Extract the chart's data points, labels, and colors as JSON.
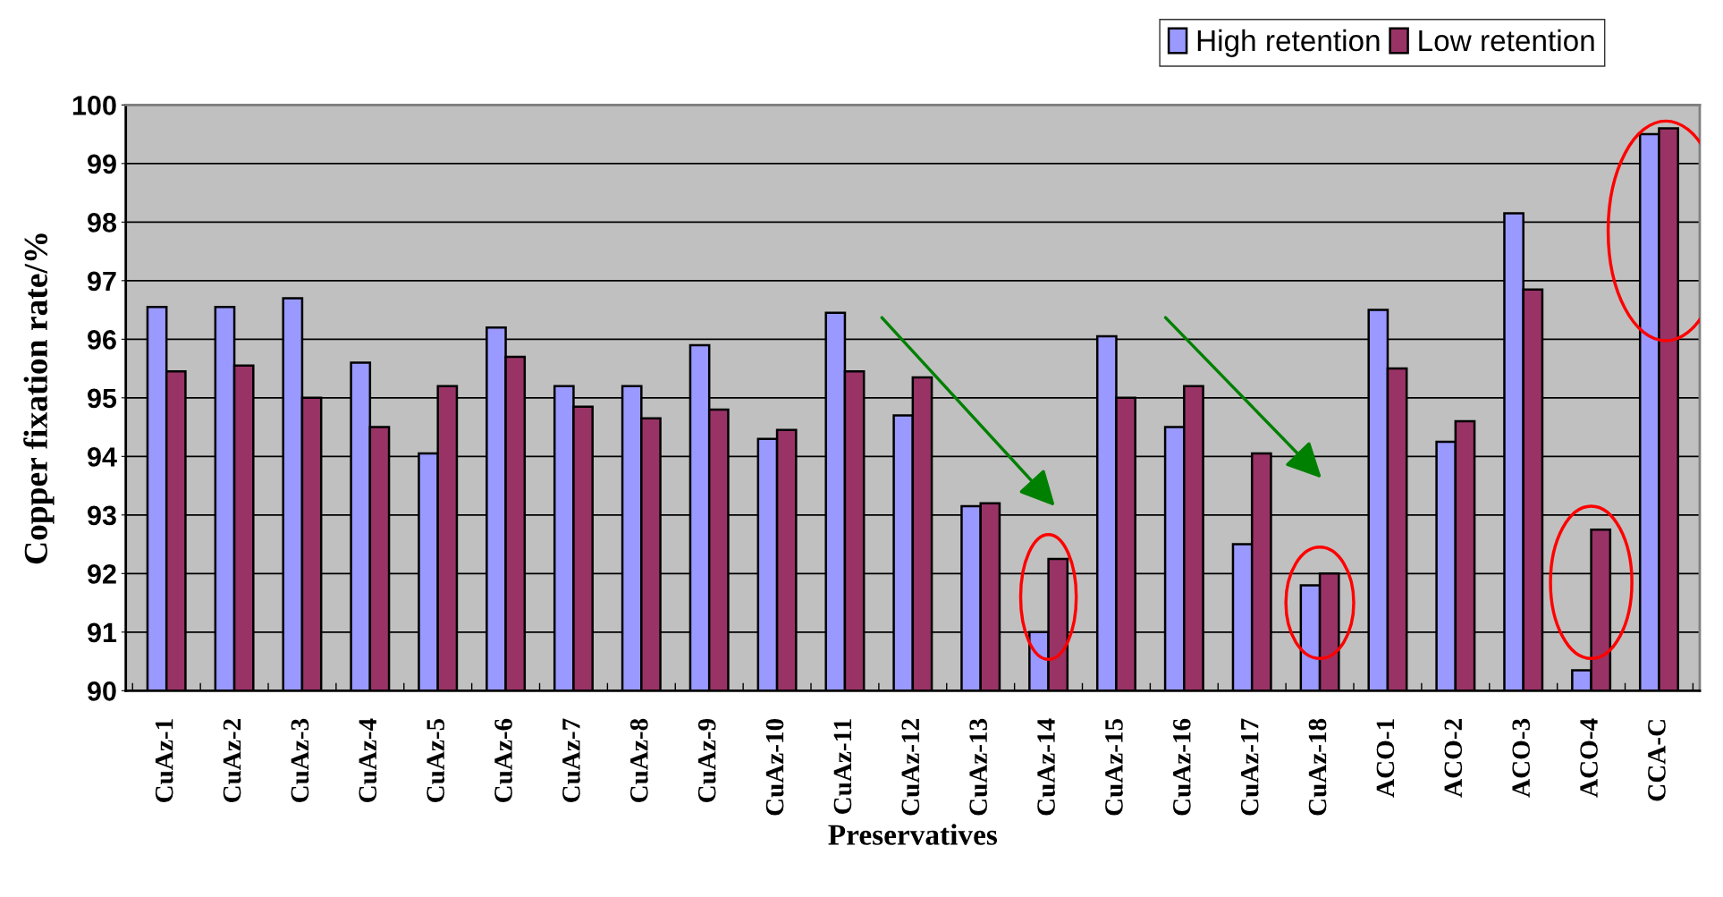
{
  "chart_data": {
    "type": "bar",
    "xlabel": "Preservatives",
    "ylabel": "Copper fixation rate/%",
    "categories": [
      "CuAz-1",
      "CuAz-2",
      "CuAz-3",
      "CuAz-4",
      "CuAz-5",
      "CuAz-6",
      "CuAz-7",
      "CuAz-8",
      "CuAz-9",
      "CuAz-10",
      "CuAz-11",
      "CuAz-12",
      "CuAz-13",
      "CuAz-14",
      "CuAz-15",
      "CuAz-16",
      "CuAz-17",
      "CuAz-18",
      "ACO-1",
      "ACO-2",
      "ACO-3",
      "ACO-4",
      "CCA-C"
    ],
    "series": [
      {
        "name": "High retention",
        "color": "#9999ff",
        "values": [
          96.55,
          96.55,
          96.7,
          95.6,
          94.05,
          96.2,
          95.2,
          95.2,
          95.9,
          94.3,
          96.45,
          94.7,
          93.15,
          91.0,
          96.05,
          94.5,
          92.5,
          91.8,
          96.5,
          94.25,
          98.15,
          90.35,
          99.5
        ]
      },
      {
        "name": "Low retention",
        "color": "#993366",
        "values": [
          95.45,
          95.55,
          95.0,
          94.5,
          95.2,
          95.7,
          94.85,
          94.65,
          94.8,
          94.45,
          95.45,
          95.35,
          93.2,
          92.25,
          95.0,
          95.2,
          94.05,
          92.0,
          95.5,
          94.6,
          96.85,
          92.75,
          99.6
        ]
      }
    ],
    "ylim": [
      90,
      100
    ],
    "yticks": [
      90,
      91,
      92,
      93,
      94,
      95,
      96,
      97,
      98,
      99,
      100
    ],
    "grid": "y",
    "legend": "top right"
  }
}
